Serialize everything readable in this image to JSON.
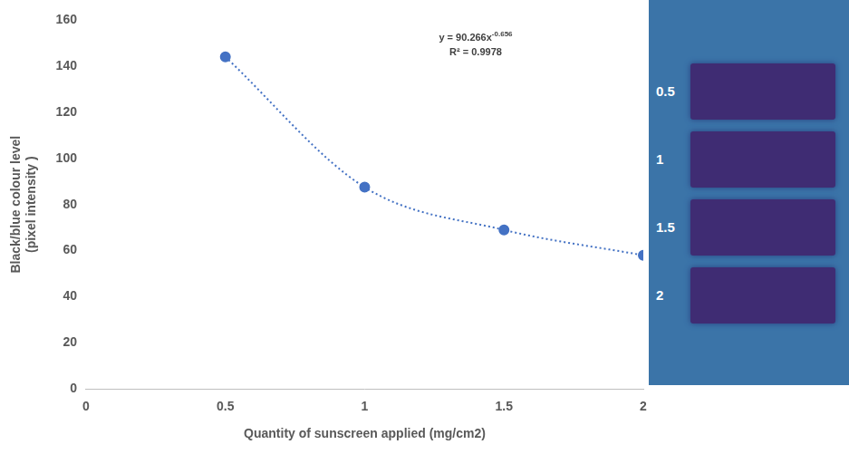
{
  "chart_data": {
    "type": "scatter",
    "x_label": "Quantity of sunscreen applied (mg/cm2)",
    "y_label": [
      "Black/blue colour level",
      "(pixel intensity )"
    ],
    "x": [
      0.5,
      1,
      1.5,
      2
    ],
    "values": [
      144,
      87.5,
      69,
      58
    ],
    "color": "#4472c4",
    "marker": "circle",
    "line_style": "dotted",
    "xlim": [
      0,
      2
    ],
    "xticks": [
      0,
      0.5,
      1,
      1.5,
      2
    ],
    "ylim": [
      0,
      160
    ],
    "yticks": [
      0,
      20,
      40,
      60,
      80,
      100,
      120,
      140,
      160
    ],
    "grid": false,
    "annotations": [
      {
        "text": "y = 90.266x",
        "superscript": "-0.656"
      },
      {
        "text": "R² = 0.9978"
      }
    ]
  },
  "image_labels": [
    "0.5",
    "1",
    "1.5",
    "2"
  ]
}
